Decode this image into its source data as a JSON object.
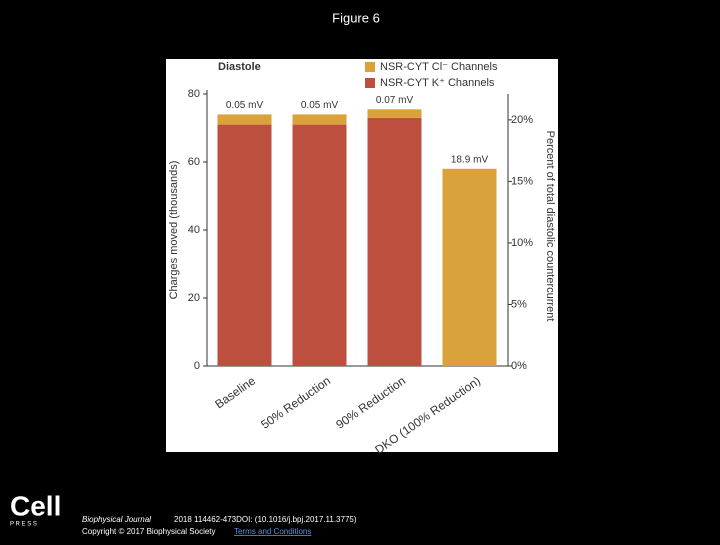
{
  "page_title": "Figure 6",
  "chart_data": {
    "type": "stacked_bar",
    "title": "Diastole",
    "categories": [
      "Baseline",
      "50% Reduction",
      "90% Reduction",
      "DKO (100% Reduction)"
    ],
    "series": [
      {
        "name": "NSR-CYT K⁺ Channels",
        "color": "#bd4f3f",
        "values": [
          71,
          71,
          73,
          0
        ]
      },
      {
        "name": "NSR-CYT Cl⁻ Channels",
        "color": "#d9a23a",
        "values": [
          3,
          3,
          2.5,
          58
        ]
      }
    ],
    "annotations": [
      "0.05 mV",
      "0.05 mV",
      "0.07 mV",
      "18.9 mV"
    ],
    "ylabel": "Charges moved (thousands)",
    "ylim": [
      0,
      80
    ],
    "yticks": [
      0,
      20,
      40,
      60,
      80
    ],
    "y2label": "Percent of total diastolic countercurrent",
    "y2lim": [
      0,
      22.1
    ],
    "y2ticks": [
      {
        "value": 0,
        "label": "0%"
      },
      {
        "value": 5,
        "label": "5%"
      },
      {
        "value": 10,
        "label": "10%"
      },
      {
        "value": 15,
        "label": "15%"
      },
      {
        "value": 20,
        "label": "20%"
      }
    ]
  },
  "footer": {
    "logo": "Cell",
    "logo_sub": "P R E S S",
    "journal": "Biophysical Journal",
    "citation": "2018 114462-473DOI: (10.1016/j.bpj.2017.11.3775)",
    "copyright": "Copyright © 2017 Biophysical Society",
    "link": "Terms and Conditions"
  }
}
